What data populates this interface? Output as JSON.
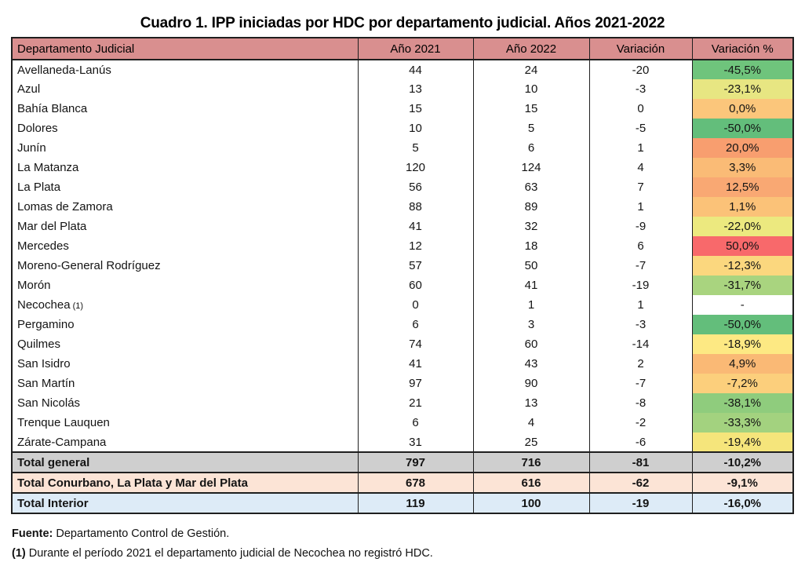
{
  "title": "Cuadro 1. IPP iniciadas por HDC por departamento judicial. Años 2021-2022",
  "colors": {
    "header_bg": "#d98f8f",
    "scale_green": "#63be7b",
    "scale_yellow": "#ffeb84",
    "scale_red": "#f8696b",
    "total_general_bg": "#cfcfcf",
    "total_conurbano_bg": "#fce4d6",
    "total_interior_bg": "#ddebf7"
  },
  "chart_data": {
    "type": "table",
    "title": "Cuadro 1. IPP iniciadas por HDC por departamento judicial. Años 2021-2022",
    "columns": [
      "Departamento Judicial",
      "Año 2021",
      "Año 2022",
      "Variación",
      "Variación %"
    ],
    "rows": [
      {
        "name": "Avellaneda-Lanús",
        "note": "",
        "y2021": 44,
        "y2022": 24,
        "variation": -20,
        "variation_pct": "-45,5%",
        "color": "#6fc47c"
      },
      {
        "name": "Azul",
        "note": "",
        "y2021": 13,
        "y2022": 10,
        "variation": -3,
        "variation_pct": "-23,1%",
        "color": "#e7e682"
      },
      {
        "name": "Bahía Blanca",
        "note": "",
        "y2021": 15,
        "y2022": 15,
        "variation": 0,
        "variation_pct": "0,0%",
        "color": "#fbc67b"
      },
      {
        "name": "Dolores",
        "note": "",
        "y2021": 10,
        "y2022": 5,
        "variation": -5,
        "variation_pct": "-50,0%",
        "color": "#63be7b"
      },
      {
        "name": "Junín",
        "note": "",
        "y2021": 5,
        "y2022": 6,
        "variation": 1,
        "variation_pct": "20,0%",
        "color": "#f89e6f"
      },
      {
        "name": "La Matanza",
        "note": "",
        "y2021": 120,
        "y2022": 124,
        "variation": 4,
        "variation_pct": "3,3%",
        "color": "#fabb76"
      },
      {
        "name": "La Plata",
        "note": "",
        "y2021": 56,
        "y2022": 63,
        "variation": 7,
        "variation_pct": "12,5%",
        "color": "#f9a873"
      },
      {
        "name": "Lomas de Zamora",
        "note": "",
        "y2021": 88,
        "y2022": 89,
        "variation": 1,
        "variation_pct": "1,1%",
        "color": "#fbc278"
      },
      {
        "name": "Mar del Plata",
        "note": "",
        "y2021": 41,
        "y2022": 32,
        "variation": -9,
        "variation_pct": "-22,0%",
        "color": "#ece97f"
      },
      {
        "name": "Mercedes",
        "note": "",
        "y2021": 12,
        "y2022": 18,
        "variation": 6,
        "variation_pct": "50,0%",
        "color": "#f8696b"
      },
      {
        "name": "Moreno-General Rodríguez",
        "note": "",
        "y2021": 57,
        "y2022": 50,
        "variation": -7,
        "variation_pct": "-12,3%",
        "color": "#fbd77e"
      },
      {
        "name": "Morón",
        "note": "",
        "y2021": 60,
        "y2022": 41,
        "variation": -19,
        "variation_pct": "-31,7%",
        "color": "#a9d47f"
      },
      {
        "name": "Necochea",
        "note": "(1)",
        "y2021": 0,
        "y2022": 1,
        "variation": 1,
        "variation_pct": "-",
        "color": "#ffffff"
      },
      {
        "name": "Pergamino",
        "note": "",
        "y2021": 6,
        "y2022": 3,
        "variation": -3,
        "variation_pct": "-50,0%",
        "color": "#63be7b"
      },
      {
        "name": "Quilmes",
        "note": "",
        "y2021": 74,
        "y2022": 60,
        "variation": -14,
        "variation_pct": "-18,9%",
        "color": "#fde983"
      },
      {
        "name": "San Isidro",
        "note": "",
        "y2021": 41,
        "y2022": 43,
        "variation": 2,
        "variation_pct": "4,9%",
        "color": "#fab975"
      },
      {
        "name": "San Martín",
        "note": "",
        "y2021": 97,
        "y2022": 90,
        "variation": -7,
        "variation_pct": "-7,2%",
        "color": "#fccf7c"
      },
      {
        "name": "San Nicolás",
        "note": "",
        "y2021": 21,
        "y2022": 13,
        "variation": -8,
        "variation_pct": "-38,1%",
        "color": "#8fcc7d"
      },
      {
        "name": "Trenque Lauquen",
        "note": "",
        "y2021": 6,
        "y2022": 4,
        "variation": -2,
        "variation_pct": "-33,3%",
        "color": "#a3d27f"
      },
      {
        "name": "Zárate-Campana",
        "note": "",
        "y2021": 31,
        "y2022": 25,
        "variation": -6,
        "variation_pct": "-19,4%",
        "color": "#f5e57b"
      }
    ],
    "totals": [
      {
        "name": "Total general",
        "y2021": 797,
        "y2022": 716,
        "variation": -81,
        "variation_pct": "-10,2%",
        "bg": "#cfcfcf"
      },
      {
        "name": "Total Conurbano, La Plata y Mar del Plata",
        "y2021": 678,
        "y2022": 616,
        "variation": -62,
        "variation_pct": "-9,1%",
        "bg": "#fce4d6"
      },
      {
        "name": "Total Interior",
        "y2021": 119,
        "y2022": 100,
        "variation": -19,
        "variation_pct": "-16,0%",
        "bg": "#ddebf7"
      }
    ]
  },
  "footer": {
    "source_label": "Fuente:",
    "source_text": " Departamento Control de Gestión.",
    "note_label": "(1)",
    "note_text": " Durante el período 2021 el departamento judicial de Necochea no registró HDC."
  }
}
